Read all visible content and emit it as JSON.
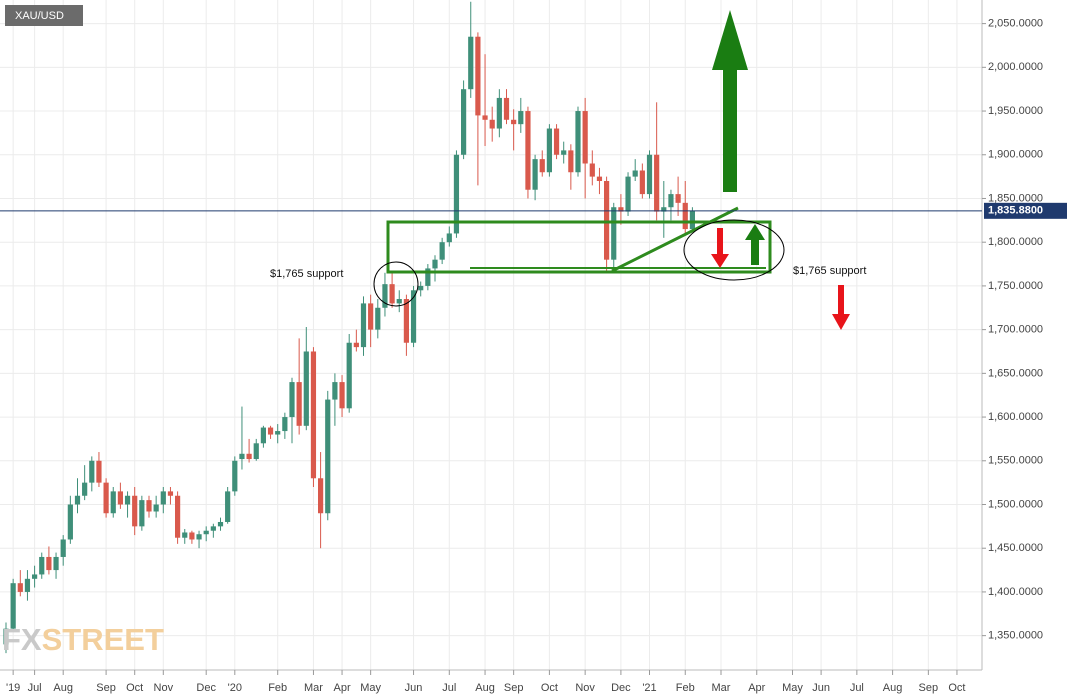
{
  "chart_data": {
    "type": "candlestick",
    "symbol": "XAU/USD",
    "categories": [
      null,
      "'19",
      null,
      null,
      "Jul",
      null,
      null,
      null,
      "Aug",
      null,
      null,
      null,
      null,
      null,
      "Sep",
      null,
      null,
      null,
      "Oct",
      null,
      null,
      null,
      "Nov",
      null,
      null,
      null,
      null,
      null,
      "Dec",
      null,
      null,
      null,
      "'20",
      null,
      null,
      null,
      null,
      null,
      "Feb",
      null,
      null,
      null,
      null,
      "Mar",
      null,
      null,
      null,
      "Apr",
      null,
      null,
      null,
      "May",
      null,
      null,
      null,
      null,
      null,
      "Jun",
      null,
      null,
      null,
      null,
      "Jul",
      null,
      null,
      null,
      null,
      "Aug",
      null,
      null,
      null,
      "Sep",
      null,
      null,
      null,
      null,
      "Oct",
      null,
      null,
      null,
      null,
      "Nov",
      null,
      null,
      null,
      null,
      "Dec",
      null,
      null,
      null,
      "'21",
      null,
      null,
      null,
      null,
      "Feb",
      null,
      null,
      null,
      null,
      "Mar",
      null,
      null,
      null,
      null,
      "Apr",
      null,
      null,
      null,
      null,
      "May",
      null,
      null,
      null,
      "Jun",
      null,
      null,
      null,
      null,
      "Jul",
      null,
      null,
      null,
      null,
      "Aug",
      null,
      null,
      null,
      null,
      "Sep",
      null,
      null,
      null,
      "Oct",
      null,
      null,
      null
    ],
    "open": [
      1340,
      1358,
      1410,
      1400,
      1415,
      1420,
      1440,
      1425,
      1440,
      1460,
      1500,
      1510,
      1525,
      1550,
      1525,
      1490,
      1515,
      1500,
      1510,
      1475,
      1505,
      1492,
      1500,
      1515,
      1510,
      1462,
      1468,
      1460,
      1466,
      1470,
      1475,
      1480,
      1515,
      1552,
      1558,
      1552,
      1570,
      1588,
      1580,
      1584,
      1600,
      1640,
      1590,
      1675,
      1530,
      1490,
      1620,
      1640,
      1610,
      1685,
      1680,
      1730,
      1700,
      1725,
      1752,
      1730,
      1735,
      1685,
      1745,
      1750,
      1770,
      1780,
      1800,
      1810,
      1900,
      1975,
      2035,
      1945,
      1940,
      1930,
      1965,
      1940,
      1935,
      1950,
      1860,
      1895,
      1880,
      1930,
      1900,
      1905,
      1880,
      1950,
      1890,
      1875,
      1870,
      1780,
      1840,
      1835,
      1875,
      1882,
      1855,
      1900,
      1835,
      1840,
      1855,
      1845,
      1815,
      null,
      null,
      null,
      null,
      null,
      null,
      null,
      null,
      null,
      null,
      null,
      null,
      null,
      null,
      null,
      null,
      null,
      null,
      null,
      null,
      null,
      null,
      null,
      null,
      null,
      null,
      null,
      null,
      null,
      null,
      null,
      null,
      null,
      null,
      null,
      null,
      null,
      null,
      null,
      null
    ],
    "high": [
      1365,
      1415,
      1425,
      1425,
      1430,
      1445,
      1452,
      1445,
      1465,
      1510,
      1530,
      1545,
      1555,
      1560,
      1530,
      1520,
      1525,
      1515,
      1520,
      1510,
      1510,
      1510,
      1520,
      1520,
      1515,
      1472,
      1470,
      1470,
      1475,
      1478,
      1485,
      1520,
      1555,
      1612,
      1575,
      1575,
      1590,
      1590,
      1592,
      1605,
      1645,
      1690,
      1703,
      1680,
      1560,
      1630,
      1650,
      1648,
      1695,
      1700,
      1738,
      1740,
      1735,
      1765,
      1765,
      1745,
      1740,
      1750,
      1755,
      1775,
      1785,
      1805,
      1818,
      1905,
      1985,
      2075,
      2040,
      2015,
      1955,
      1975,
      1975,
      1952,
      1965,
      1955,
      1900,
      1905,
      1935,
      1935,
      1915,
      1912,
      1955,
      1965,
      1905,
      1885,
      1875,
      1845,
      1855,
      1880,
      1895,
      1890,
      1905,
      1960,
      1870,
      1860,
      1875,
      1870,
      1840,
      null,
      null,
      null,
      null,
      null,
      null,
      null,
      null,
      null,
      null,
      null,
      null,
      null,
      null,
      null,
      null,
      null,
      null,
      null,
      null,
      null,
      null,
      null,
      null,
      null,
      null,
      null,
      null,
      null,
      null,
      null,
      null,
      null,
      null,
      null,
      null,
      null,
      null,
      null,
      null
    ],
    "low": [
      1330,
      1355,
      1395,
      1390,
      1405,
      1415,
      1420,
      1415,
      1430,
      1455,
      1490,
      1505,
      1515,
      1520,
      1485,
      1485,
      1495,
      1485,
      1465,
      1470,
      1485,
      1485,
      1490,
      1500,
      1455,
      1455,
      1455,
      1450,
      1458,
      1462,
      1470,
      1478,
      1510,
      1540,
      1548,
      1550,
      1565,
      1575,
      1570,
      1575,
      1570,
      1580,
      1585,
      1520,
      1450,
      1482,
      1590,
      1600,
      1605,
      1675,
      1670,
      1680,
      1690,
      1715,
      1725,
      1720,
      1670,
      1680,
      1738,
      1745,
      1755,
      1775,
      1795,
      1805,
      1895,
      1965,
      1865,
      1910,
      1915,
      1920,
      1935,
      1905,
      1925,
      1850,
      1848,
      1875,
      1875,
      1895,
      1890,
      1860,
      1875,
      1850,
      1865,
      1855,
      1765,
      1765,
      1820,
      1830,
      1870,
      1850,
      1850,
      1825,
      1805,
      1825,
      1830,
      1810,
      1812,
      null,
      null,
      null,
      null,
      null,
      null,
      null,
      null,
      null,
      null,
      null,
      null,
      null,
      null,
      null,
      null,
      null,
      null,
      null,
      null,
      null,
      null,
      null,
      null,
      null,
      null,
      null,
      null,
      null,
      null,
      null,
      null,
      null,
      null,
      null,
      null,
      null,
      null,
      null,
      null
    ],
    "close": [
      1358,
      1410,
      1400,
      1415,
      1420,
      1440,
      1425,
      1440,
      1460,
      1500,
      1510,
      1525,
      1550,
      1525,
      1490,
      1515,
      1500,
      1510,
      1475,
      1505,
      1492,
      1500,
      1515,
      1510,
      1462,
      1468,
      1460,
      1466,
      1470,
      1475,
      1480,
      1515,
      1550,
      1558,
      1552,
      1570,
      1588,
      1580,
      1584,
      1600,
      1640,
      1590,
      1675,
      1530,
      1490,
      1620,
      1640,
      1610,
      1685,
      1680,
      1730,
      1700,
      1725,
      1752,
      1730,
      1735,
      1685,
      1745,
      1750,
      1770,
      1780,
      1800,
      1810,
      1900,
      1975,
      2035,
      1945,
      1940,
      1930,
      1965,
      1940,
      1935,
      1950,
      1860,
      1895,
      1880,
      1930,
      1900,
      1905,
      1880,
      1950,
      1890,
      1875,
      1870,
      1780,
      1840,
      1835,
      1875,
      1882,
      1855,
      1900,
      1835,
      1840,
      1855,
      1845,
      1815,
      1835.88,
      null,
      null,
      null,
      null,
      null,
      null,
      null,
      null,
      null,
      null,
      null,
      null,
      null,
      null,
      null,
      null,
      null,
      null,
      null,
      null,
      null,
      null,
      null,
      null,
      null,
      null,
      null,
      null,
      null,
      null,
      null,
      null,
      null,
      null,
      null,
      null,
      null,
      null,
      null,
      null
    ],
    "up_color": "#3f8f79",
    "down_color": "#d9594c",
    "ylim": [
      1313,
      2077
    ],
    "yticks": [
      {
        "value": 1350,
        "label": "1,350.0000"
      },
      {
        "value": 1400,
        "label": "1,400.0000"
      },
      {
        "value": 1450,
        "label": "1,450.0000"
      },
      {
        "value": 1500,
        "label": "1,500.0000"
      },
      {
        "value": 1550,
        "label": "1,550.0000"
      },
      {
        "value": 1600,
        "label": "1,600.0000"
      },
      {
        "value": 1650,
        "label": "1,650.0000"
      },
      {
        "value": 1700,
        "label": "1,700.0000"
      },
      {
        "value": 1750,
        "label": "1,750.0000"
      },
      {
        "value": 1800,
        "label": "1,800.0000"
      },
      {
        "value": 1850,
        "label": "1,850.0000"
      },
      {
        "value": 1900,
        "label": "1,900.0000"
      },
      {
        "value": 1950,
        "label": "1,950.0000"
      },
      {
        "value": 2000,
        "label": "2,000.0000"
      },
      {
        "value": 2050,
        "label": "2,050.0000"
      }
    ],
    "last_price": {
      "value": 1835.88,
      "label": "1,835.8800"
    },
    "grid": true,
    "annotations": [
      "$1,765 support",
      "$1,765 support"
    ],
    "watermark": [
      "FX",
      "STREET"
    ]
  }
}
